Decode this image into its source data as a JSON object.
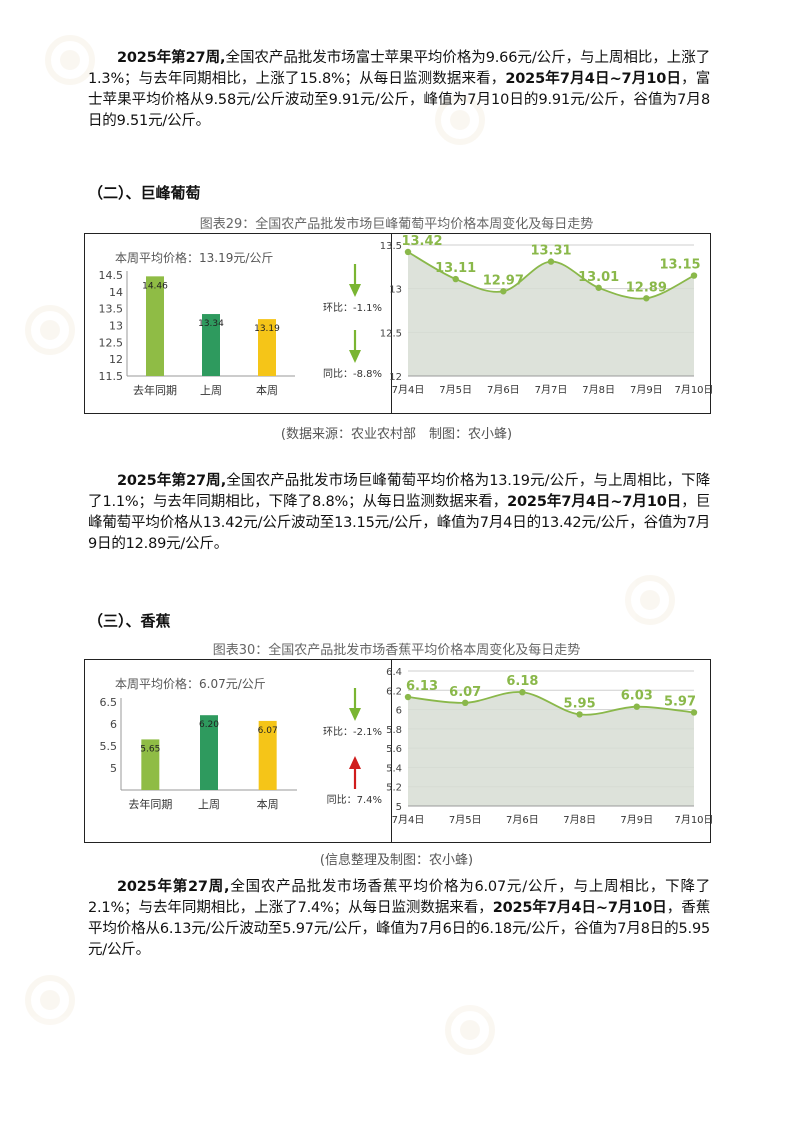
{
  "section_apple": {
    "p1": "2025年第27周,",
    "p2": "全国农产品批发市场富士苹果平均价格为9.66元/公斤，与上周相比，上涨了1.3%；与去年同期相比，上涨了15.8%；从每日监测数据来看，",
    "p3": "2025年7月4日~7月10日",
    "p4": "，富士苹果平均价格从9.58元/公斤波动至9.91元/公斤，峰值为7月10日的9.91元/公斤，谷值为7月8日的9.51元/公斤。"
  },
  "section_grape": {
    "heading": "（二）、巨峰葡萄",
    "caption": "图表29：全国农产品批发市场巨峰葡萄平均价格本周变化及每日走势",
    "source": "(数据来源：农业农村部　制图：农小蜂)",
    "p1": "2025年第27周,",
    "p2": "全国农产品批发市场巨峰葡萄平均价格为13.19元/公斤，与上周相比，下降了1.1%；与去年同期相比，下降了8.8%；从每日监测数据来看，",
    "p3": "2025年7月4日~7月10日",
    "p4": "，巨峰葡萄平均价格从13.42元/公斤波动至13.15元/公斤，峰值为7月4日的13.42元/公斤，谷值为7月9日的12.89元/公斤。"
  },
  "section_banana": {
    "heading": "（三）、香蕉",
    "caption": "图表30：全国农产品批发市场香蕉平均价格本周变化及每日走势",
    "source": "(信息整理及制图：农小蜂)",
    "p1": "2025年第27周,",
    "p2": "全国农产品批发市场香蕉平均价格为6.07元/公斤，与上周相比，下降了2.1%；与去年同期相比，上涨了7.4%；从每日监测数据来看，",
    "p3": "2025年7月4日~7月10日",
    "p4": "，香蕉平均价格从6.13元/公斤波动至5.97元/公斤，峰值为7月6日的6.18元/公斤，谷值为7月8日的5.95元/公斤。"
  },
  "chart_data": [
    {
      "type": "bar",
      "id": "grape_bar",
      "title": "本周平均价格：13.19元/公斤",
      "categories": [
        "去年同期",
        "上周",
        "本周"
      ],
      "values": [
        14.46,
        13.34,
        13.19
      ],
      "value_labels": [
        "14.46",
        "13.34",
        "13.19"
      ],
      "colors": [
        "#8fbc45",
        "#2e9a5e",
        "#f5c518"
      ],
      "ylim": [
        11.5,
        14.5
      ],
      "yticks": [
        "11.5",
        "12",
        "12.5",
        "13",
        "13.5",
        "14",
        "14.5"
      ],
      "yticks_values": [
        11.5,
        12,
        12.5,
        13,
        13.5,
        14,
        14.5
      ],
      "indicators": [
        {
          "label": "环比：-1.1%",
          "direction": "down",
          "color": "#7ab532"
        },
        {
          "label": "同比：-8.8%",
          "direction": "down",
          "color": "#7ab532"
        }
      ]
    },
    {
      "type": "area",
      "id": "grape_line",
      "categories": [
        "7月4日",
        "7月5日",
        "7月6日",
        "7月7日",
        "7月8日",
        "7月9日",
        "7月10日"
      ],
      "values": [
        13.42,
        13.11,
        12.97,
        13.31,
        13.01,
        12.89,
        13.15
      ],
      "value_labels": [
        "13.42",
        "13.11",
        "12.97",
        "13.31",
        "13.01",
        "12.89",
        "13.15"
      ],
      "ylim": [
        12,
        13.5
      ],
      "yticks": [
        "12",
        "12.5",
        "13",
        "13.5"
      ],
      "yticks_values": [
        12,
        12.5,
        13,
        13.5
      ],
      "line_color": "#8ab84a",
      "fill_color": "#d7ddd4",
      "grid": true
    },
    {
      "type": "bar",
      "id": "banana_bar",
      "title": "本周平均价格：6.07元/公斤",
      "categories": [
        "去年同期",
        "上周",
        "本周"
      ],
      "values": [
        5.65,
        6.2,
        6.07
      ],
      "value_labels": [
        "5.65",
        "6.20",
        "6.07"
      ],
      "colors": [
        "#8fbc45",
        "#2e9a5e",
        "#f5c518"
      ],
      "ylim": [
        4.5,
        6.5
      ],
      "yticks": [
        "5",
        "5.5",
        "6",
        "6.5"
      ],
      "yticks_values": [
        5,
        5.5,
        6,
        6.5
      ],
      "indicators": [
        {
          "label": "环比：-2.1%",
          "direction": "down",
          "color": "#7ab532"
        },
        {
          "label": "同比：7.4%",
          "direction": "up",
          "color": "#d01c1c"
        }
      ]
    },
    {
      "type": "area",
      "id": "banana_line",
      "categories": [
        "7月4日",
        "7月5日",
        "7月6日",
        "7月8日",
        "7月9日",
        "7月10日"
      ],
      "values": [
        6.13,
        6.07,
        6.18,
        5.95,
        6.03,
        5.97
      ],
      "value_labels": [
        "6.13",
        "6.07",
        "6.18",
        "5.95",
        "6.03",
        "5.97"
      ],
      "ylim": [
        5,
        6.4
      ],
      "yticks": [
        "5",
        "5.2",
        "5.4",
        "5.6",
        "5.8",
        "6",
        "6.2",
        "6.4"
      ],
      "yticks_values": [
        5,
        5.2,
        5.4,
        5.6,
        5.8,
        6,
        6.2,
        6.4
      ],
      "line_color": "#8ab84a",
      "fill_color": "#d7ddd4",
      "grid": true
    }
  ]
}
